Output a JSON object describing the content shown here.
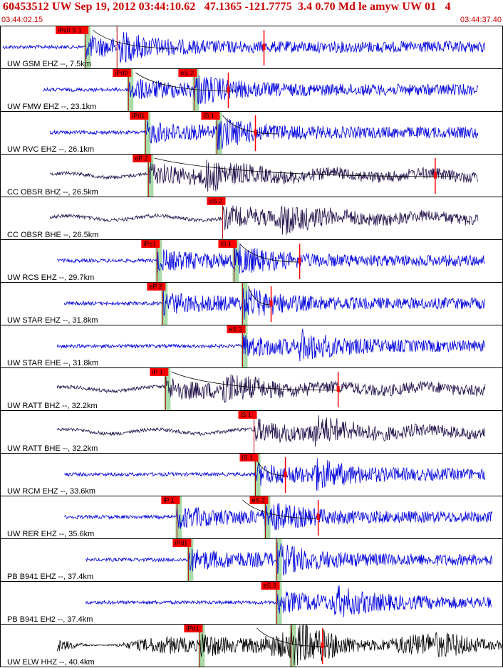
{
  "header": {
    "title": "60453512 UW Sep 19, 2012 03:44:10.62   47.1365 -121.7775  3.4 0.70 Md le amyw UW 01   4",
    "time_start": "03:44:02.15",
    "time_end": "03:44:37.40"
  },
  "colors": {
    "panel_border": "#000000",
    "pick_box": "#ff0000",
    "pick_window": "#a8dba8",
    "trace_short_period": "#0000dd",
    "trace_broadband": "#22104a",
    "trace_elw": "#000000",
    "title_text": "#cc0000"
  },
  "panels": [
    {
      "label": "UW GSM EHZ --, 7.5km",
      "trace": "short_period",
      "picks": [
        {
          "label": "iPc0 S 1",
          "t": 6.0,
          "green": true
        },
        {
          "label": "",
          "t": 8.2,
          "green": false
        }
      ],
      "marker": 18.5,
      "curve": [
        6.5,
        12.5
      ],
      "extent": [
        0.2,
        34.0
      ]
    },
    {
      "label": "UW FMW EHZ --, 23.1km",
      "trace": "short_period",
      "picks": [
        {
          "label": "iPd0",
          "t": 9.0,
          "green": true
        },
        {
          "label": "eS 2",
          "t": 13.6,
          "green": true
        }
      ],
      "marker": 16.0,
      "curve": [
        9.5,
        16.5
      ],
      "extent": [
        3.0,
        33.5
      ]
    },
    {
      "label": "UW RVC EHZ --, 26.1km",
      "trace": "short_period",
      "picks": [
        {
          "label": "iPd1",
          "t": 10.2,
          "green": true
        },
        {
          "label": "iS 1",
          "t": 15.2,
          "green": true
        }
      ],
      "marker": 17.9,
      "curve": [
        15.6,
        19.5
      ],
      "extent": [
        3.5,
        33.5
      ]
    },
    {
      "label": "CC OBSR BHZ --, 26.5km",
      "trace": "broadband",
      "picks": [
        {
          "label": "eP 2",
          "t": 10.4,
          "green": true
        }
      ],
      "marker": 30.5,
      "curve": [
        10.8,
        32.0
      ],
      "extent": [
        3.5,
        33.5
      ]
    },
    {
      "label": "CC OBSR BHE --, 26.5km",
      "trace": "broadband",
      "picks": [
        {
          "label": "eS 2",
          "t": 15.6,
          "green": false
        }
      ],
      "marker": null,
      "curve": null,
      "extent": [
        3.5,
        33.5
      ]
    },
    {
      "label": "UW RCS EHZ --, 29.7km",
      "trace": "short_period",
      "picks": [
        {
          "label": "iPc1",
          "t": 11.0,
          "green": true
        },
        {
          "label": "iS 1",
          "t": 16.4,
          "green": true
        }
      ],
      "marker": 21.0,
      "curve": [
        16.8,
        21.0
      ],
      "extent": [
        4.0,
        34.0
      ]
    },
    {
      "label": "UW STAR EHZ --, 31.8km",
      "trace": "short_period",
      "picks": [
        {
          "label": "eP 2",
          "t": 11.4,
          "green": true
        },
        {
          "label": "",
          "t": 17.0,
          "green": true
        }
      ],
      "marker": 19.0,
      "curve": [
        17.4,
        19.0
      ],
      "extent": [
        4.5,
        34.0
      ]
    },
    {
      "label": "UW STAR EHE --, 31.8km",
      "trace": "short_period",
      "picks": [
        {
          "label": "eS 2",
          "t": 17.0,
          "green": true
        }
      ],
      "marker": null,
      "curve": null,
      "extent": [
        4.0,
        34.0
      ]
    },
    {
      "label": "UW RATT BHZ --, 32.2km",
      "trace": "broadband",
      "picks": [
        {
          "label": "iP 1",
          "t": 11.6,
          "green": true
        }
      ],
      "marker": 23.7,
      "curve": [
        12.0,
        24.0
      ],
      "extent": [
        4.0,
        34.0
      ]
    },
    {
      "label": "UW RATT BHE --, 32.2km",
      "trace": "broadband",
      "picks": [
        {
          "label": "iS 1",
          "t": 17.8,
          "green": false
        }
      ],
      "marker": null,
      "curve": null,
      "extent": [
        4.0,
        34.0
      ]
    },
    {
      "label": "UW RCM EHZ --, 33.6km",
      "trace": "short_period",
      "picks": [
        {
          "label": "iS 1",
          "t": 17.9,
          "green": true
        }
      ],
      "marker": 20.0,
      "curve": [
        17.9,
        20.0
      ],
      "extent": [
        4.5,
        34.0
      ]
    },
    {
      "label": "UW RER EHZ --, 35.6km",
      "trace": "short_period",
      "picks": [
        {
          "label": "iP 1",
          "t": 12.4,
          "green": true
        },
        {
          "label": "eS 2",
          "t": 18.6,
          "green": true
        }
      ],
      "marker": 22.3,
      "curve": [
        17.0,
        22.3
      ],
      "extent": [
        4.5,
        34.5
      ]
    },
    {
      "label": "PB B941 EHZ --, 37.4km",
      "trace": "short_period",
      "picks": [
        {
          "label": "iPd1",
          "t": 13.2,
          "green": true
        },
        {
          "label": "",
          "t": 19.4,
          "green": true
        }
      ],
      "marker": null,
      "curve": null,
      "extent": [
        6.0,
        34.5
      ]
    },
    {
      "label": "PB B941 EH2 --, 37.4km",
      "trace": "short_period",
      "picks": [
        {
          "label": "eS 2",
          "t": 19.4,
          "green": true
        }
      ],
      "marker": null,
      "curve": null,
      "extent": [
        6.0,
        34.5
      ]
    },
    {
      "label": "UW ELW HHZ --, 40.4km",
      "trace": "elw",
      "picks": [
        {
          "label": "iPd1",
          "t": 14.0,
          "green": true
        },
        {
          "label": "",
          "t": 20.4,
          "green": true
        }
      ],
      "marker": 22.6,
      "curve": [
        18.0,
        23.0
      ],
      "extent": [
        4.0,
        35.25
      ]
    }
  ]
}
